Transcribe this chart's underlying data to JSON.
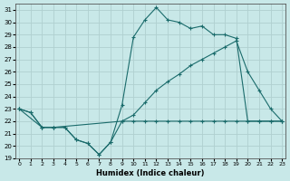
{
  "xlabel": "Humidex (Indice chaleur)",
  "bg_color": "#c8e8e8",
  "grid_color": "#b0d0d0",
  "line_color": "#1a6b6b",
  "xlim": [
    0,
    23
  ],
  "ylim": [
    19,
    31.5
  ],
  "xticks": [
    0,
    1,
    2,
    3,
    4,
    5,
    6,
    7,
    8,
    9,
    10,
    11,
    12,
    13,
    14,
    15,
    16,
    17,
    18,
    19,
    20,
    21,
    22,
    23
  ],
  "yticks": [
    19,
    20,
    21,
    22,
    23,
    24,
    25,
    26,
    27,
    28,
    29,
    30,
    31
  ],
  "line1_x": [
    0,
    1,
    2,
    3,
    4,
    5,
    6,
    7,
    8,
    9,
    10,
    11,
    12,
    13,
    14,
    15,
    16,
    17,
    18,
    19,
    20,
    21,
    22,
    23
  ],
  "line1_y": [
    23.0,
    22.7,
    21.5,
    21.5,
    21.5,
    20.5,
    20.2,
    19.3,
    20.3,
    22.0,
    22.0,
    22.0,
    22.0,
    22.0,
    22.0,
    22.0,
    22.0,
    22.0,
    22.0,
    22.0,
    22.0,
    22.0,
    22.0,
    22.0
  ],
  "line2_x": [
    0,
    1,
    2,
    3,
    4,
    5,
    6,
    7,
    8,
    9,
    10,
    11,
    12,
    13,
    14,
    15,
    16,
    17,
    18,
    19,
    20,
    21,
    22,
    23
  ],
  "line2_y": [
    23.0,
    22.7,
    21.5,
    21.5,
    21.5,
    20.5,
    20.2,
    19.3,
    20.3,
    23.3,
    28.8,
    30.2,
    31.2,
    30.2,
    30.0,
    29.5,
    29.7,
    29.0,
    29.0,
    28.7,
    22.0,
    22.0,
    22.0,
    22.0
  ],
  "line3_x": [
    0,
    2,
    3,
    9,
    10,
    11,
    12,
    13,
    14,
    15,
    16,
    17,
    18,
    19,
    20,
    21,
    22,
    23
  ],
  "line3_y": [
    23.0,
    21.5,
    21.5,
    22.0,
    22.5,
    23.5,
    24.5,
    25.2,
    25.8,
    26.5,
    27.0,
    27.5,
    28.0,
    28.5,
    26.0,
    24.5,
    23.0,
    22.0
  ]
}
